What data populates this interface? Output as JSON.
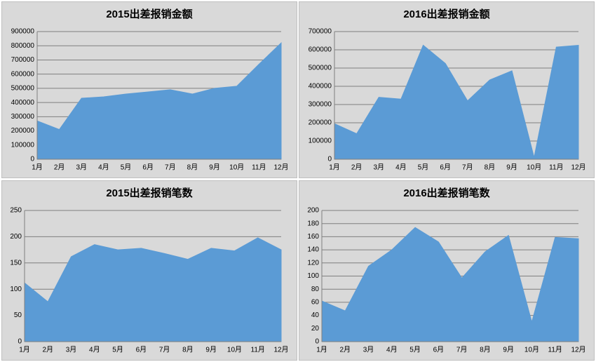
{
  "chart_data": [
    {
      "type": "area",
      "title": "2015出差报销金额",
      "color": "#5b9bd5",
      "grid": true,
      "categories": [
        "1月",
        "2月",
        "3月",
        "4月",
        "5月",
        "6月",
        "7月",
        "8月",
        "9月",
        "10月",
        "11月",
        "12月"
      ],
      "values": [
        270000,
        210000,
        430000,
        440000,
        460000,
        475000,
        490000,
        460000,
        500000,
        515000,
        670000,
        820000
      ],
      "ylim": [
        0,
        900000
      ],
      "yticks": [
        0,
        100000,
        200000,
        300000,
        400000,
        500000,
        600000,
        700000,
        800000,
        900000
      ]
    },
    {
      "type": "area",
      "title": "2016出差报销金额",
      "color": "#5b9bd5",
      "grid": true,
      "categories": [
        "1月",
        "2月",
        "3月",
        "4月",
        "5月",
        "6月",
        "7月",
        "8月",
        "9月",
        "10月",
        "11月",
        "12月"
      ],
      "values": [
        195000,
        140000,
        340000,
        330000,
        625000,
        525000,
        320000,
        435000,
        485000,
        10000,
        615000,
        625000
      ],
      "ylim": [
        0,
        700000
      ],
      "yticks": [
        0,
        100000,
        200000,
        300000,
        400000,
        500000,
        600000,
        700000
      ]
    },
    {
      "type": "area",
      "title": "2015出差报销笔数",
      "color": "#5b9bd5",
      "grid": true,
      "categories": [
        "1月",
        "2月",
        "3月",
        "4月",
        "5月",
        "6月",
        "7月",
        "8月",
        "9月",
        "10月",
        "11月",
        "12月"
      ],
      "values": [
        112,
        76,
        162,
        185,
        175,
        178,
        168,
        157,
        178,
        173,
        198,
        175
      ],
      "ylim": [
        0,
        250
      ],
      "yticks": [
        0,
        50,
        100,
        150,
        200,
        250
      ]
    },
    {
      "type": "area",
      "title": "2016出差报销笔数",
      "color": "#5b9bd5",
      "grid": true,
      "categories": [
        "1月",
        "2月",
        "3月",
        "4月",
        "5月",
        "6月",
        "7月",
        "8月",
        "9月",
        "10月",
        "11月",
        "12月"
      ],
      "values": [
        62,
        47,
        115,
        140,
        174,
        152,
        97,
        137,
        162,
        30,
        159,
        157
      ],
      "ylim": [
        0,
        200
      ],
      "yticks": [
        0,
        20,
        40,
        60,
        80,
        100,
        120,
        140,
        160,
        180,
        200
      ]
    }
  ]
}
